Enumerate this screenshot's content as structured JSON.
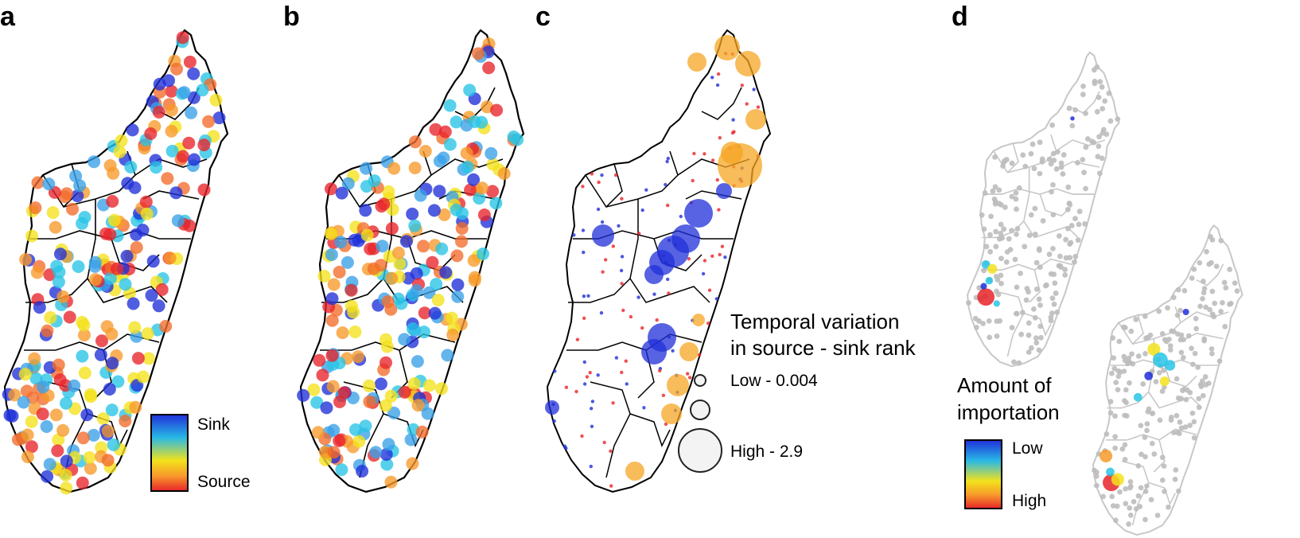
{
  "figure": {
    "panels": [
      {
        "letter": "a"
      },
      {
        "letter": "b"
      },
      {
        "letter": "c"
      },
      {
        "letter": "d"
      }
    ]
  },
  "legend_a": {
    "top": "Sink",
    "bottom": "Source"
  },
  "legend_c": {
    "title_line1": "Temporal variation",
    "title_line2": "in source - sink rank",
    "low": "Low - 0.004",
    "high": "High - 2.9"
  },
  "legend_d": {
    "title_line1": "Amount of",
    "title_line2": "importation",
    "low": "Low",
    "high": "High"
  },
  "colors": {
    "sink_blue": "#1f2fd8",
    "cyan": "#28c4e6",
    "yellow": "#f3e21b",
    "orange": "#f79a2a",
    "source_red": "#e8242a",
    "outline": "#000000",
    "grey_map": "#bdbdbd",
    "bubble_orange": "#f5a623"
  }
}
